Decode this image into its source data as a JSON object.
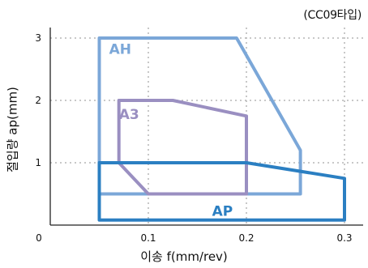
{
  "chart_data": {
    "type": "area",
    "title": "",
    "subtitle": "(CC09타입)",
    "xlabel": "이송 f(mm/rev)",
    "ylabel": "절입량 ap(mm)",
    "xlim": [
      0,
      0.3
    ],
    "ylim": [
      0,
      3
    ],
    "origin_label": "0",
    "x_ticks": [
      {
        "value": 0.1,
        "label": "0.1"
      },
      {
        "value": 0.2,
        "label": "0.2"
      },
      {
        "value": 0.3,
        "label": "0.3"
      }
    ],
    "y_ticks": [
      {
        "value": 1,
        "label": "1"
      },
      {
        "value": 2,
        "label": "2"
      },
      {
        "value": 3,
        "label": "3"
      }
    ],
    "grid": true,
    "series": [
      {
        "name": "AH",
        "color": "#7ba7d8",
        "label_at": [
          0.06,
          2.75
        ],
        "points": [
          [
            0.05,
            3.0
          ],
          [
            0.19,
            3.0
          ],
          [
            0.255,
            1.2
          ],
          [
            0.255,
            0.5
          ],
          [
            0.05,
            0.5
          ]
        ]
      },
      {
        "name": "A3",
        "color": "#9a8fc1",
        "label_at": [
          0.07,
          1.7
        ],
        "points": [
          [
            0.07,
            2.0
          ],
          [
            0.125,
            2.0
          ],
          [
            0.2,
            1.75
          ],
          [
            0.2,
            0.5
          ],
          [
            0.1,
            0.5
          ],
          [
            0.07,
            1.0
          ]
        ]
      },
      {
        "name": "AP",
        "color": "#2b7fc2",
        "label_at": [
          0.165,
          0.15
        ],
        "points": [
          [
            0.05,
            1.0
          ],
          [
            0.2,
            1.0
          ],
          [
            0.3,
            0.75
          ],
          [
            0.3,
            0.08
          ],
          [
            0.05,
            0.08
          ]
        ]
      }
    ]
  }
}
